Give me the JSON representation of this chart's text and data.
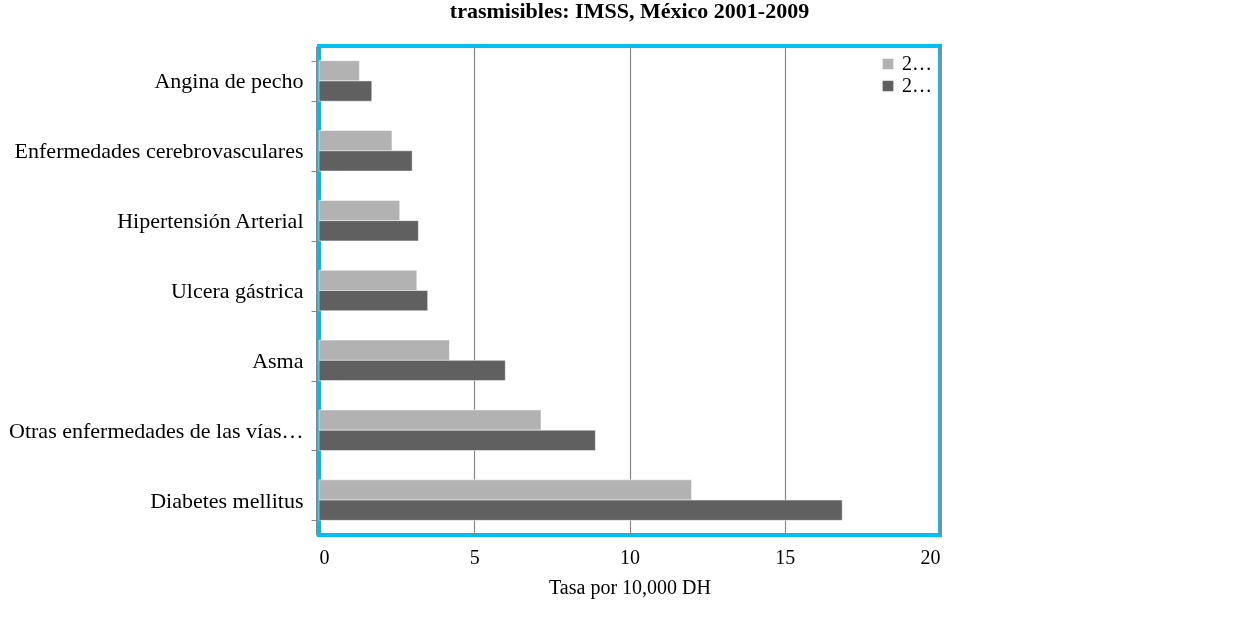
{
  "chart_data": {
    "type": "bar",
    "orientation": "horizontal",
    "title": "trasmisibles: IMSS, México 2001-2009",
    "xlabel": "Tasa por 10,000  DH",
    "categories": [
      "Angina de pecho",
      "Enfermedades cerebrovasculares",
      "Hipertensión Arterial",
      "Ulcera gástrica",
      "Asma",
      "Otras enfermedades de las vías…",
      "Diabetes mellitus"
    ],
    "series": [
      {
        "name": "2…",
        "color": "#b2b2b2",
        "values": [
          1.3,
          2.35,
          2.6,
          3.15,
          4.2,
          7.15,
          12.0
        ]
      },
      {
        "name": "2…",
        "color": "#606060",
        "values": [
          1.7,
          3.0,
          3.2,
          3.5,
          6.0,
          8.9,
          16.85
        ]
      }
    ],
    "xlim": [
      0,
      20
    ],
    "xticks": [
      0,
      5,
      10,
      15,
      20
    ],
    "grid": "x",
    "legend": "top right"
  }
}
